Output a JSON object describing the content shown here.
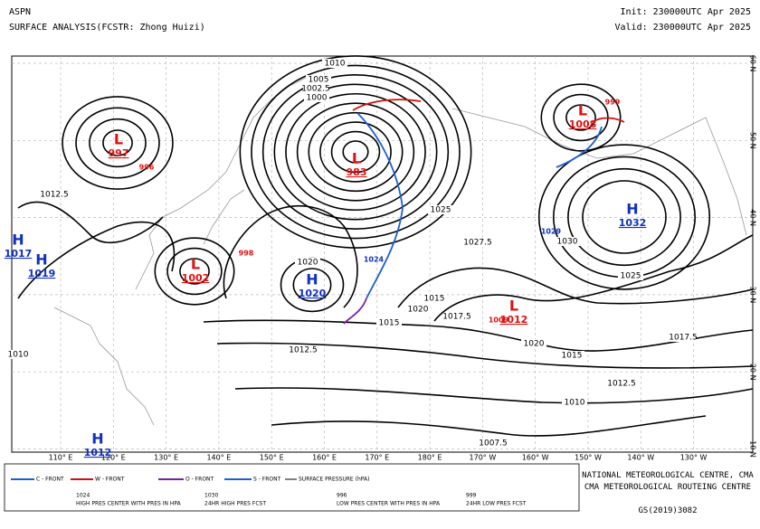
{
  "header": {
    "product": "ASPN",
    "title": "SURFACE ANALYSIS(FCSTR: Zhong Huizi)",
    "init": "Init: 230000UTC Apr 2025",
    "valid": "Valid: 230000UTC Apr 2025"
  },
  "map": {
    "longitudes": [
      "110° E",
      "120° E",
      "130° E",
      "140° E",
      "150° E",
      "160° E",
      "170° E",
      "180° E",
      "170° W",
      "160° W",
      "150° W",
      "140° W",
      "130° W"
    ],
    "latitudes": [
      "60 N",
      "50 N",
      "40 N",
      "30 N",
      "20 N",
      "10 N"
    ],
    "centers": [
      {
        "symbol": "L",
        "value": "997"
      },
      {
        "symbol": "L",
        "value": "983"
      },
      {
        "symbol": "L",
        "value": "1008"
      },
      {
        "symbol": "L",
        "value": "1002"
      },
      {
        "symbol": "L",
        "value": "1012"
      },
      {
        "symbol": "H",
        "value": "1032"
      },
      {
        "symbol": "H",
        "value": "1020"
      },
      {
        "symbol": "H",
        "value": "1019"
      },
      {
        "symbol": "H",
        "value": "1017"
      },
      {
        "symbol": "H",
        "value": "1012"
      }
    ],
    "forecasts": [
      "996",
      "999",
      "998",
      "1024",
      "1029",
      "1009"
    ],
    "isobar_labels": [
      "1015",
      "1012.5",
      "1010",
      "1017.5",
      "1020",
      "1025",
      "1027.5",
      "1030",
      "1025",
      "1012.5",
      "1015",
      "1007.5",
      "1020",
      "1020",
      "1010",
      "1015",
      "1017.5",
      "1012.5",
      "1010",
      "1005",
      "1002.5",
      "1000"
    ]
  },
  "legend": [
    "C - FRONT",
    "W - FRONT",
    "O - FRONT",
    "S - FRONT",
    "SURFACE PRESSURE (hPA)",
    "1024",
    "HIGH PRES CENTER WITH PRES IN HPA",
    "1030",
    "24HR HIGH PRES FCST",
    "996",
    "LOW PRES CENTER WITH PRES IN HPA",
    "999",
    "24HR LOW PRES FCST"
  ],
  "footer": [
    "NATIONAL METEOROLOGICAL CENTRE, CMA",
    "CMA METEOROLOGICAL ROUTEING CENTRE",
    "GS(2019)3082"
  ]
}
